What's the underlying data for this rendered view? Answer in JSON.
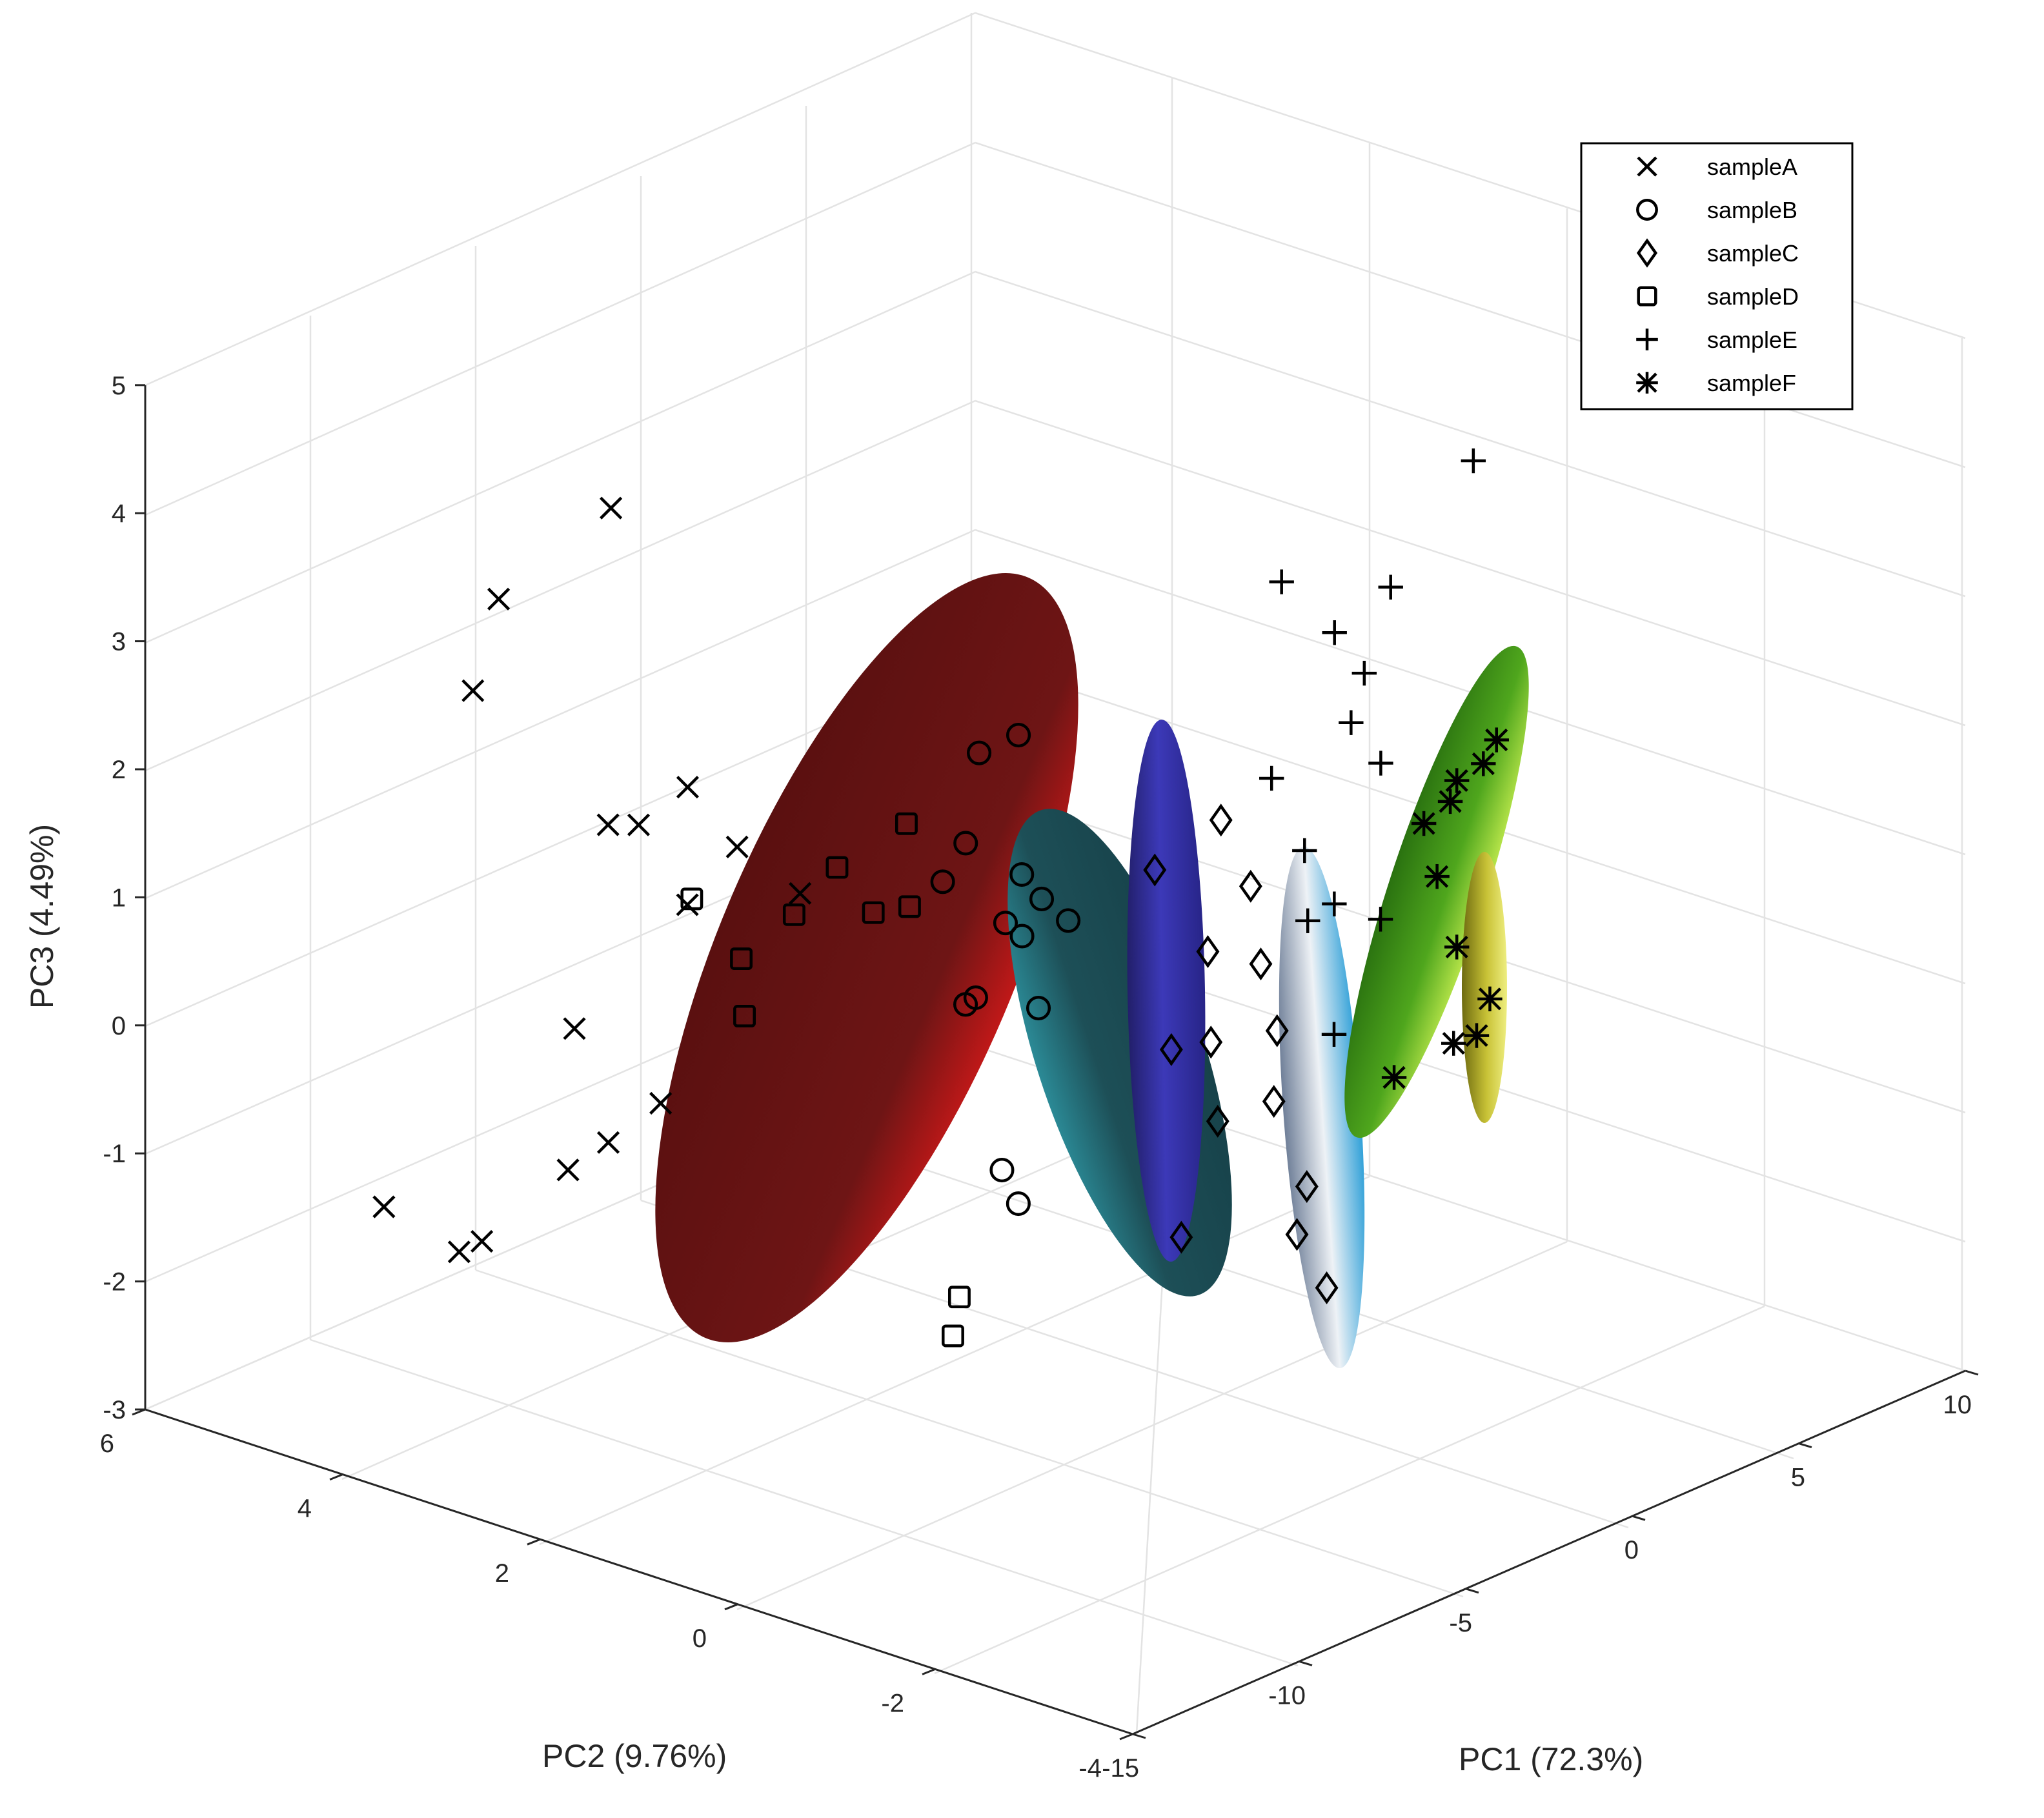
{
  "chart_data": {
    "type": "scatter",
    "projection": "3d",
    "title": "",
    "xlabel": "PC1 (72.3%)",
    "ylabel": "PC2 (9.76%)",
    "zlabel": "PC3 (4.49%)",
    "xlim": [
      -15,
      10
    ],
    "ylim": [
      -4,
      6
    ],
    "zlim": [
      -3,
      5
    ],
    "xticks": [
      "-15",
      "-10",
      "-5",
      "0",
      "5",
      "10"
    ],
    "yticks": [
      "-4",
      "-2",
      "0",
      "2",
      "4",
      "6"
    ],
    "zticks": [
      "-3",
      "-2",
      "-1",
      "0",
      "1",
      "2",
      "3",
      "4",
      "5"
    ],
    "grid": true,
    "legend_position": "top-right",
    "series": [
      {
        "name": "sampleA",
        "marker": "x",
        "ellipse_color": "#6b1212",
        "points": [
          [
            -10.8,
            2.7,
            4.4
          ],
          [
            -11.8,
            3.5,
            3.6
          ],
          [
            -10.2,
            4.3,
            2.5
          ],
          [
            -8.2,
            2.8,
            1.9
          ],
          [
            -9.7,
            3.1,
            1.7
          ],
          [
            -7.9,
            2.4,
            1.5
          ],
          [
            -8.8,
            2.6,
            1.1
          ],
          [
            -7.3,
            3.6,
            1.3
          ],
          [
            -11.6,
            2.8,
            0.4
          ],
          [
            -9.9,
            2.5,
            -0.3
          ],
          [
            -11.2,
            3.0,
            -0.8
          ],
          [
            -9.1,
            3.3,
            -0.9
          ],
          [
            -12.6,
            3.4,
            -1.3
          ],
          [
            -11.8,
            3.9,
            -1.6
          ],
          [
            -10.5,
            5.1,
            -1.7
          ],
          [
            -6.9,
            2.1,
            1.1
          ]
        ]
      },
      {
        "name": "sampleB",
        "marker": "o",
        "ellipse_color": "#2c2a8c",
        "points": [
          [
            -3.6,
            1.4,
            2.0
          ],
          [
            -3.9,
            0.9,
            2.3
          ],
          [
            -4.3,
            1.3,
            1.4
          ],
          [
            -3.8,
            0.9,
            1.2
          ],
          [
            -4.1,
            1.6,
            1.0
          ],
          [
            -3.5,
            0.8,
            1.0
          ],
          [
            -3.2,
            1.1,
            0.6
          ],
          [
            -4.6,
            1.2,
            0.2
          ],
          [
            -3.7,
            1.4,
            0.1
          ],
          [
            -3.3,
            0.9,
            0.1
          ],
          [
            -4.1,
            1.0,
            -1.1
          ],
          [
            -4.2,
            0.8,
            -1.3
          ],
          [
            -3.4,
            1.2,
            0.7
          ],
          [
            -3.0,
            0.7,
            0.8
          ]
        ]
      },
      {
        "name": "sampleC",
        "marker": "diamond",
        "ellipse_color": "#b7c3cf",
        "points": [
          [
            0.4,
            0.3,
            1.3
          ],
          [
            -0.4,
            0.7,
            0.9
          ],
          [
            0.7,
            0.1,
            0.8
          ],
          [
            0.6,
            0.5,
            0.2
          ],
          [
            1.3,
            0.2,
            0.1
          ],
          [
            0.9,
            -0.1,
            -0.3
          ],
          [
            -0.2,
            0.6,
            -0.5
          ],
          [
            0.1,
            0.3,
            -0.4
          ],
          [
            1.1,
            0.0,
            -0.9
          ],
          [
            0.6,
            0.4,
            -1.1
          ],
          [
            1.2,
            -0.3,
            -1.5
          ],
          [
            1.2,
            -0.2,
            -1.9
          ],
          [
            0.1,
            0.6,
            -2.0
          ],
          [
            1.5,
            -0.4,
            -2.3
          ]
        ]
      },
      {
        "name": "sampleD",
        "marker": "square",
        "ellipse_color": "#1f5b63",
        "points": [
          [
            -4.3,
            1.9,
            1.4
          ],
          [
            -4.9,
            2.4,
            1.0
          ],
          [
            -4.5,
            1.8,
            0.8
          ],
          [
            -4.7,
            2.1,
            0.7
          ],
          [
            -5.3,
            2.7,
            0.6
          ],
          [
            -6.0,
            3.5,
            0.6
          ],
          [
            -5.7,
            3.1,
            0.2
          ],
          [
            -5.9,
            3.0,
            -0.2
          ],
          [
            -3.6,
            1.6,
            -2.3
          ],
          [
            -3.2,
            1.8,
            -2.7
          ]
        ]
      },
      {
        "name": "sampleE",
        "marker": "+",
        "ellipse_color": "#3f8f12",
        "points": [
          [
            6.2,
            -0.3,
            3.6
          ],
          [
            4.0,
            0.9,
            2.6
          ],
          [
            5.2,
            0.2,
            2.6
          ],
          [
            4.7,
            0.6,
            2.2
          ],
          [
            5.0,
            0.4,
            1.9
          ],
          [
            4.9,
            0.5,
            1.5
          ],
          [
            5.2,
            0.3,
            1.2
          ],
          [
            3.7,
            0.9,
            1.1
          ],
          [
            3.8,
            0.6,
            0.6
          ],
          [
            4.1,
            0.4,
            0.2
          ],
          [
            3.6,
            0.5,
            0.1
          ],
          [
            4.6,
            0.1,
            0.1
          ],
          [
            3.5,
            0.2,
            -0.7
          ]
        ]
      },
      {
        "name": "sampleF",
        "marker": "*",
        "ellipse_color": "#a6a21f",
        "points": [
          [
            6.6,
            -0.4,
            1.4
          ],
          [
            6.0,
            -0.2,
            1.1
          ],
          [
            6.1,
            -0.1,
            0.9
          ],
          [
            5.9,
            0.1,
            0.7
          ],
          [
            6.5,
            -0.3,
            1.2
          ],
          [
            6.0,
            0.0,
            0.3
          ],
          [
            6.0,
            -0.2,
            -0.2
          ],
          [
            6.4,
            -0.4,
            -0.6
          ],
          [
            6.3,
            -0.3,
            -0.9
          ],
          [
            5.6,
            0.3,
            -1.3
          ],
          [
            6.2,
            -0.1,
            -1.0
          ]
        ]
      }
    ]
  }
}
